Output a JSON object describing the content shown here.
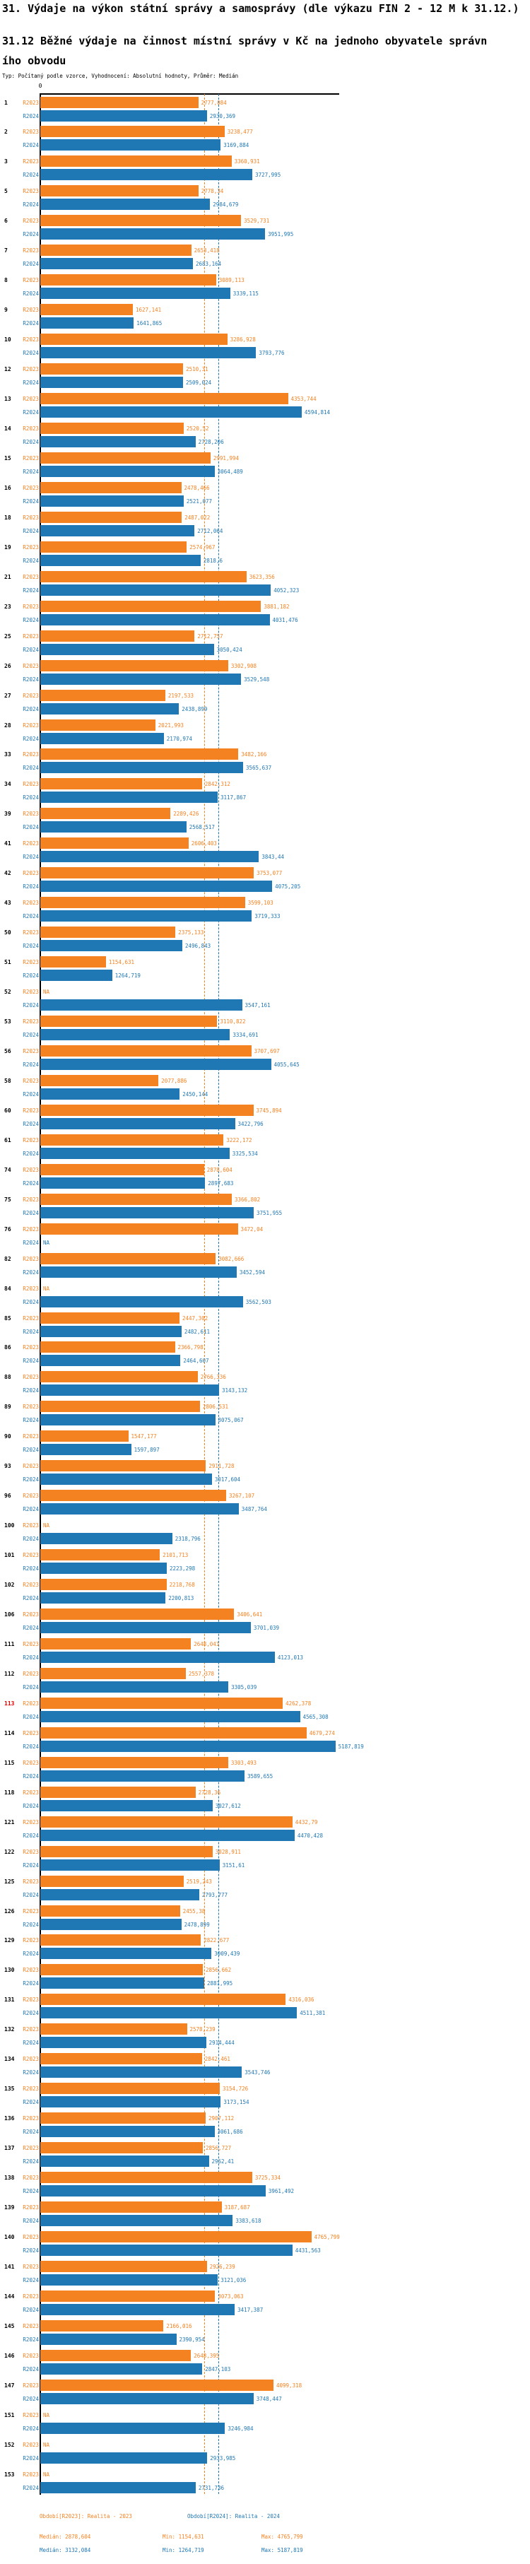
{
  "title": "31. Výdaje na výkon státní správy a samosprávy (dle výkazu FIN 2 - 12 M k 31.12.)",
  "subtitle": "31.12 Běžné výdaje na činnost místní správy v Kč na jednoho obyvatele správního obvodu",
  "meta_line": "Typ: Počítaný podle vzorce, Vyhodnocení: Absolutní hodnoty, Průměr: Medián",
  "axis": {
    "zero_label": "0"
  },
  "series_labels": {
    "r2023": "R2023",
    "r2024": "R2024"
  },
  "colors": {
    "r2023": "#f58220",
    "r2024": "#1f77b4",
    "highlight_id": "#e60000",
    "axis": "#000000"
  },
  "footer": {
    "period_2023": "Období[R2023]: Realita - 2023",
    "period_2024": "Období[R2024]: Realita - 2024",
    "median_2023": "Medián: 2878,604",
    "min_2023": "Min: 1154,631",
    "max_2023": "Max: 4765,799",
    "median_2024": "Medián: 3132,084",
    "min_2024": "Min: 1264,719",
    "max_2024": "Max: 5187,819"
  },
  "chart_data": {
    "type": "bar",
    "orientation": "horizontal",
    "title": "31.12 Běžné výdaje na činnost místní správy v Kč na jednoho obyvatele správního obvodu",
    "series_names": [
      "R2023",
      "R2024"
    ],
    "xlim": [
      0,
      5250
    ],
    "grid": false,
    "legend_position": "bottom",
    "medians": {
      "R2023": 2878.604,
      "R2024": 3132.084
    },
    "min": {
      "R2023": 1154.631,
      "R2024": 1264.719
    },
    "max": {
      "R2023": 4765.799,
      "R2024": 5187.819
    },
    "na_label": "NA",
    "rows": [
      {
        "id": "1",
        "R2023": "2777,084",
        "R2024": "2930,369"
      },
      {
        "id": "2",
        "R2023": "3238,477",
        "R2024": "3169,884"
      },
      {
        "id": "3",
        "R2023": "3360,931",
        "R2024": "3727,995"
      },
      {
        "id": "5",
        "R2023": "2778,34",
        "R2024": "2984,679"
      },
      {
        "id": "6",
        "R2023": "3529,731",
        "R2024": "3951,995"
      },
      {
        "id": "7",
        "R2023": "2653,418",
        "R2024": "2683,164"
      },
      {
        "id": "8",
        "R2023": "3089,113",
        "R2024": "3339,115"
      },
      {
        "id": "9",
        "R2023": "1627,141",
        "R2024": "1641,865"
      },
      {
        "id": "10",
        "R2023": "3286,928",
        "R2024": "3793,776"
      },
      {
        "id": "12",
        "R2023": "2510,31",
        "R2024": "2509,024"
      },
      {
        "id": "13",
        "R2023": "4353,744",
        "R2024": "4594,814"
      },
      {
        "id": "14",
        "R2023": "2520,52",
        "R2024": "2728,206"
      },
      {
        "id": "15",
        "R2023": "2991,994",
        "R2024": "3064,489"
      },
      {
        "id": "16",
        "R2023": "2478,466",
        "R2024": "2521,077"
      },
      {
        "id": "18",
        "R2023": "2487,022",
        "R2024": "2712,064"
      },
      {
        "id": "19",
        "R2023": "2574,967",
        "R2024": "2818,6"
      },
      {
        "id": "21",
        "R2023": "3623,356",
        "R2024": "4052,323"
      },
      {
        "id": "23",
        "R2023": "3881,182",
        "R2024": "4031,476"
      },
      {
        "id": "25",
        "R2023": "2712,757",
        "R2024": "3050,424"
      },
      {
        "id": "26",
        "R2023": "3302,908",
        "R2024": "3529,548"
      },
      {
        "id": "27",
        "R2023": "2197,533",
        "R2024": "2438,899"
      },
      {
        "id": "28",
        "R2023": "2021,993",
        "R2024": "2170,974"
      },
      {
        "id": "33",
        "R2023": "3482,166",
        "R2024": "3565,637"
      },
      {
        "id": "34",
        "R2023": "2842,312",
        "R2024": "3117,867"
      },
      {
        "id": "39",
        "R2023": "2289,426",
        "R2024": "2568,517"
      },
      {
        "id": "41",
        "R2023": "2606,403",
        "R2024": "3843,44"
      },
      {
        "id": "42",
        "R2023": "3753,077",
        "R2024": "4075,205"
      },
      {
        "id": "43",
        "R2023": "3599,103",
        "R2024": "3719,333"
      },
      {
        "id": "50",
        "R2023": "2375,133",
        "R2024": "2496,843"
      },
      {
        "id": "51",
        "R2023": "1154,631",
        "R2024": "1264,719"
      },
      {
        "id": "52",
        "R2023": "NA",
        "R2024": "3547,161"
      },
      {
        "id": "53",
        "R2023": "3110,822",
        "R2024": "3334,691"
      },
      {
        "id": "56",
        "R2023": "3707,697",
        "R2024": "4055,645"
      },
      {
        "id": "58",
        "R2023": "2077,886",
        "R2024": "2450,144"
      },
      {
        "id": "60",
        "R2023": "3745,894",
        "R2024": "3422,796"
      },
      {
        "id": "61",
        "R2023": "3222,172",
        "R2024": "3325,534"
      },
      {
        "id": "74",
        "R2023": "2878,604",
        "R2024": "2897,683"
      },
      {
        "id": "75",
        "R2023": "3366,802",
        "R2024": "3751,955"
      },
      {
        "id": "76",
        "R2023": "3472,04",
        "R2024": "NA"
      },
      {
        "id": "82",
        "R2023": "3082,666",
        "R2024": "3452,594"
      },
      {
        "id": "84",
        "R2023": "NA",
        "R2024": "3562,503"
      },
      {
        "id": "85",
        "R2023": "2447,302",
        "R2024": "2482,611"
      },
      {
        "id": "86",
        "R2023": "2366,798",
        "R2024": "2464,607"
      },
      {
        "id": "88",
        "R2023": "2766,336",
        "R2024": "3143,132"
      },
      {
        "id": "89",
        "R2023": "2806,531",
        "R2024": "3075,067"
      },
      {
        "id": "90",
        "R2023": "1547,177",
        "R2024": "1597,897"
      },
      {
        "id": "93",
        "R2023": "2911,728",
        "R2024": "3017,604"
      },
      {
        "id": "96",
        "R2023": "3267,107",
        "R2024": "3487,764"
      },
      {
        "id": "100",
        "R2023": "NA",
        "R2024": "2318,796"
      },
      {
        "id": "101",
        "R2023": "2101,713",
        "R2024": "2223,298"
      },
      {
        "id": "102",
        "R2023": "2218,768",
        "R2024": "2200,813"
      },
      {
        "id": "106",
        "R2023": "3406,641",
        "R2024": "3701,039"
      },
      {
        "id": "111",
        "R2023": "2648,041",
        "R2024": "4123,013"
      },
      {
        "id": "112",
        "R2023": "2557,378",
        "R2024": "3305,039"
      },
      {
        "id": "113",
        "highlight": true,
        "R2023": "4262,378",
        "R2024": "4565,308"
      },
      {
        "id": "114",
        "R2023": "4679,274",
        "R2024": "5187,819"
      },
      {
        "id": "115",
        "R2023": "3303,493",
        "R2024": "3589,655"
      },
      {
        "id": "118",
        "R2023": "2728,36",
        "R2024": "3027,612"
      },
      {
        "id": "121",
        "R2023": "4432,79",
        "R2024": "4470,428"
      },
      {
        "id": "122",
        "R2023": "3028,911",
        "R2024": "3151,61"
      },
      {
        "id": "125",
        "R2023": "2519,243",
        "R2024": "2793,777"
      },
      {
        "id": "126",
        "R2023": "2455,38",
        "R2024": "2478,899"
      },
      {
        "id": "129",
        "R2023": "2822,677",
        "R2024": "3009,439"
      },
      {
        "id": "130",
        "R2023": "2856,662",
        "R2024": "2881,995"
      },
      {
        "id": "131",
        "R2023": "4316,036",
        "R2024": "4511,381"
      },
      {
        "id": "132",
        "R2023": "2578,239",
        "R2024": "2914,444"
      },
      {
        "id": "134",
        "R2023": "2842,461",
        "R2024": "3543,746"
      },
      {
        "id": "135",
        "R2023": "3154,726",
        "R2024": "3173,154"
      },
      {
        "id": "136",
        "R2023": "2907,112",
        "R2024": "3061,686"
      },
      {
        "id": "137",
        "R2023": "2856,727",
        "R2024": "2962,41"
      },
      {
        "id": "138",
        "R2023": "3725,334",
        "R2024": "3961,492"
      },
      {
        "id": "139",
        "R2023": "3187,687",
        "R2024": "3383,618"
      },
      {
        "id": "140",
        "R2023": "4765,799",
        "R2024": "4431,563"
      },
      {
        "id": "141",
        "R2023": "2926,239",
        "R2024": "3121,036"
      },
      {
        "id": "144",
        "R2023": "3073,063",
        "R2024": "3417,387"
      },
      {
        "id": "145",
        "R2023": "2166,016",
        "R2024": "2390,954"
      },
      {
        "id": "146",
        "R2023": "2648,395",
        "R2024": "2847,103"
      },
      {
        "id": "147",
        "R2023": "4099,318",
        "R2024": "3748,447"
      },
      {
        "id": "151",
        "R2023": "NA",
        "R2024": "3246,984"
      },
      {
        "id": "152",
        "R2023": "NA",
        "R2024": "2933,985"
      },
      {
        "id": "153",
        "R2023": "NA",
        "R2024": "2731,736"
      }
    ]
  }
}
